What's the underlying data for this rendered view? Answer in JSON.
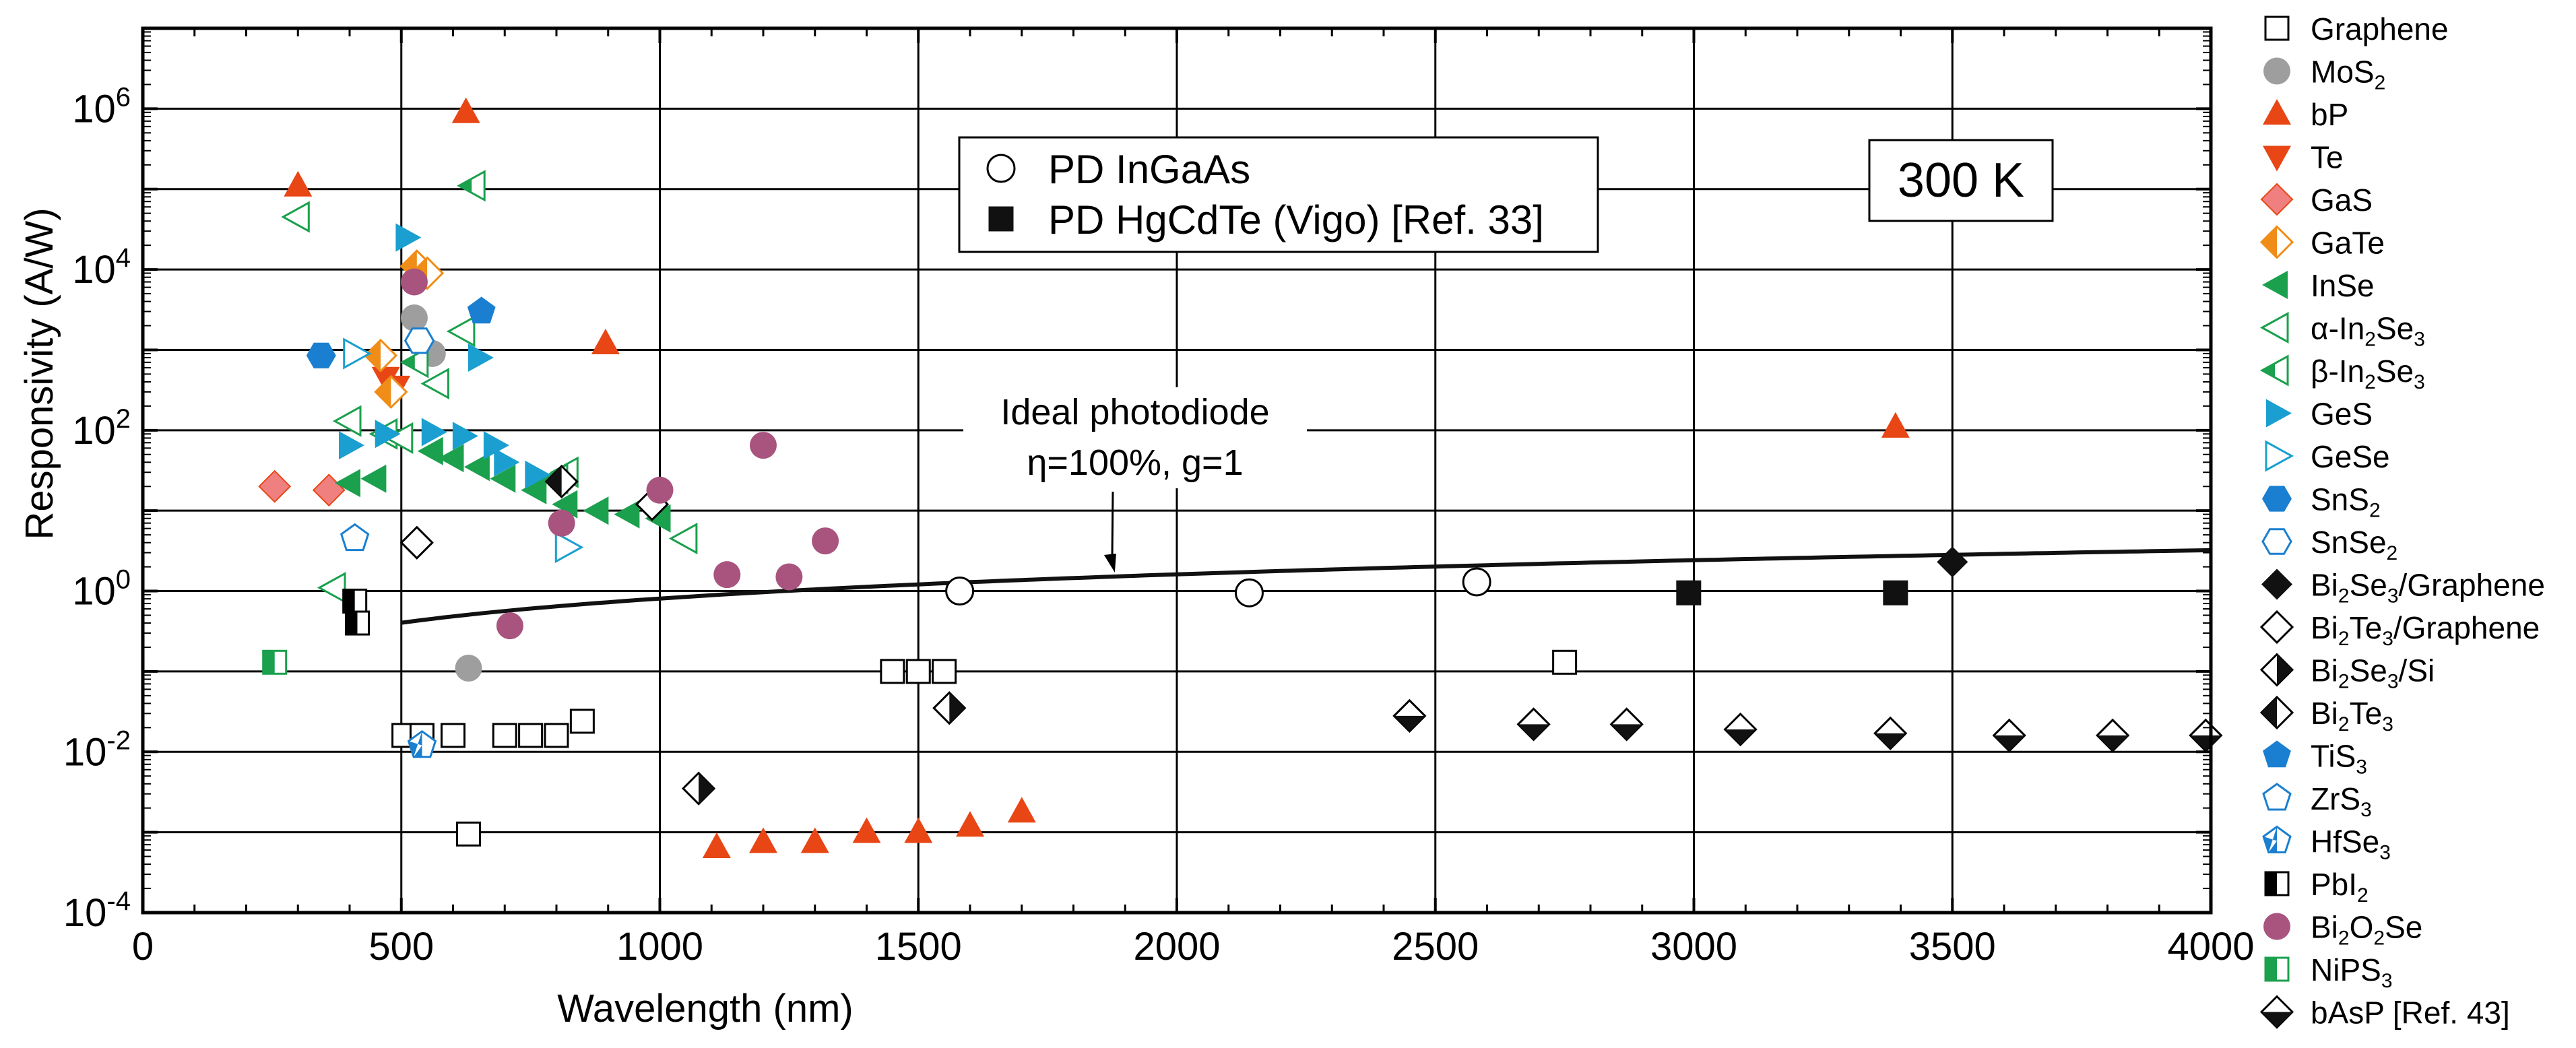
{
  "chart_data": {
    "type": "scatter",
    "xlabel": "Wavelength (nm)",
    "ylabel": "Responsivity (A/W)",
    "xlim": [
      0,
      4000
    ],
    "ylim_log10": [
      -4,
      7
    ],
    "x_ticks": [
      0,
      500,
      1000,
      1500,
      2000,
      2500,
      3000,
      3500,
      4000
    ],
    "x_tick_labels": [
      "0",
      "500",
      "1000",
      "1500",
      "2000",
      "2500",
      "3000",
      "3500",
      "4000"
    ],
    "y_ticks": [
      {
        "base": "10",
        "exp": "-4",
        "value": -4
      },
      {
        "base": "10",
        "exp": "-2",
        "value": -2
      },
      {
        "base": "10",
        "exp": "0",
        "value": 0
      },
      {
        "base": "10",
        "exp": "2",
        "value": 2
      },
      {
        "base": "10",
        "exp": "4",
        "value": 4
      },
      {
        "base": "10",
        "exp": "6",
        "value": 6
      }
    ],
    "grid": true,
    "temperature_label": "300 K",
    "ideal_curve": {
      "label_line1": "Ideal photodiode",
      "label_line2": "η=100%, g=1",
      "wavelength_range": [
        500,
        4000
      ],
      "formula": "R = lambda_um / 1.24",
      "arrow_points_at_x": 1880
    },
    "reference_legend": [
      {
        "label": "PD InGaAs",
        "marker": "circle_open"
      },
      {
        "label": "PD HgCdTe (Vigo) [Ref. 33]",
        "marker": "square_filled"
      }
    ],
    "reference_series": [
      {
        "name": "PD InGaAs",
        "marker": "circle_open",
        "points": [
          [
            1580,
            1.0
          ],
          [
            2140,
            0.95
          ],
          [
            2580,
            1.3
          ]
        ]
      },
      {
        "name": "PD HgCdTe (Vigo) [Ref. 33]",
        "marker": "square_filled",
        "points": [
          [
            2990,
            0.95
          ],
          [
            3390,
            0.95
          ]
        ]
      }
    ],
    "series": [
      {
        "name": "Graphene",
        "legend": [
          {
            "t": "Graphene"
          }
        ],
        "marker": "square_open",
        "color": "#000000",
        "points": [
          [
            505,
            0.016
          ],
          [
            540,
            0.016
          ],
          [
            600,
            0.016
          ],
          [
            630,
            0.00095
          ],
          [
            700,
            0.016
          ],
          [
            750,
            0.016
          ],
          [
            800,
            0.016
          ],
          [
            850,
            0.024
          ],
          [
            1450,
            0.1
          ],
          [
            1500,
            0.1
          ],
          [
            1550,
            0.1
          ],
          [
            2750,
            0.13
          ]
        ]
      },
      {
        "name": "MoS2",
        "legend": [
          {
            "t": "MoS"
          },
          {
            "t": "2",
            "sub": true
          }
        ],
        "marker": "circle_filled",
        "color": "#9e9e9e",
        "points": [
          [
            525,
            2500
          ],
          [
            560,
            900
          ],
          [
            630,
            0.11
          ]
        ]
      },
      {
        "name": "bP",
        "legend": [
          {
            "t": "bP"
          }
        ],
        "marker": "triangle_up",
        "color": "#e84615",
        "points": [
          [
            300,
            110000
          ],
          [
            625,
            900000
          ],
          [
            895,
            1200
          ],
          [
            1110,
            0.00065
          ],
          [
            1200,
            0.00075
          ],
          [
            1300,
            0.00075
          ],
          [
            1400,
            0.001
          ],
          [
            1500,
            0.001
          ],
          [
            1600,
            0.0012
          ],
          [
            1700,
            0.0018
          ],
          [
            3390,
            110
          ]
        ]
      },
      {
        "name": "Te",
        "legend": [
          {
            "t": "Te"
          }
        ],
        "marker": "triangle_down",
        "color": "#e84615",
        "points": [
          [
            470,
            450
          ],
          [
            490,
            350
          ]
        ]
      },
      {
        "name": "GaS",
        "legend": [
          {
            "t": "GaS"
          }
        ],
        "marker": "diamond_pink",
        "color": "#f08080",
        "points": [
          [
            255,
            20
          ],
          [
            360,
            18
          ]
        ]
      },
      {
        "name": "GaTe",
        "legend": [
          {
            "t": "GaTe"
          }
        ],
        "marker": "diamond_half_orange",
        "color": "#f08c18",
        "points": [
          [
            460,
            850
          ],
          [
            480,
            300
          ],
          [
            530,
            11000
          ],
          [
            550,
            9000
          ]
        ]
      },
      {
        "name": "InSe",
        "legend": [
          {
            "t": "InSe"
          }
        ],
        "marker": "triangle_left_filled",
        "color": "#1ba04d",
        "points": [
          [
            400,
            22
          ],
          [
            450,
            25
          ],
          [
            560,
            55
          ],
          [
            600,
            45
          ],
          [
            650,
            35
          ],
          [
            700,
            25
          ],
          [
            760,
            18
          ],
          [
            820,
            12
          ],
          [
            880,
            10
          ],
          [
            940,
            9
          ],
          [
            1000,
            8
          ]
        ]
      },
      {
        "name": "α-In2Se3",
        "legend": [
          {
            "t": "α-In"
          },
          {
            "t": "2",
            "sub": true
          },
          {
            "t": "Se"
          },
          {
            "t": "3",
            "sub": true
          }
        ],
        "marker": "triangle_left_open",
        "color": "#1ba04d",
        "points": [
          [
            300,
            45000
          ],
          [
            370,
            1.1
          ],
          [
            400,
            130
          ],
          [
            470,
            90
          ],
          [
            500,
            80
          ],
          [
            570,
            380
          ],
          [
            620,
            1700
          ],
          [
            820,
            30
          ],
          [
            1050,
            4.5
          ]
        ]
      },
      {
        "name": "β-In2Se3",
        "legend": [
          {
            "t": "β-In"
          },
          {
            "t": "2",
            "sub": true
          },
          {
            "t": "Se"
          },
          {
            "t": "3",
            "sub": true
          }
        ],
        "marker": "triangle_left_half",
        "color": "#1ba04d",
        "points": [
          [
            640,
            110000
          ],
          [
            530,
            700
          ],
          [
            800,
            25
          ]
        ]
      },
      {
        "name": "GeS",
        "legend": [
          {
            "t": "GeS"
          }
        ],
        "marker": "triangle_right_filled",
        "color": "#1a9fd0",
        "points": [
          [
            510,
            25000
          ],
          [
            650,
            800
          ],
          [
            400,
            65
          ],
          [
            470,
            90
          ],
          [
            560,
            95
          ],
          [
            620,
            85
          ],
          [
            680,
            65
          ],
          [
            700,
            40
          ],
          [
            760,
            28
          ]
        ]
      },
      {
        "name": "GeSe",
        "legend": [
          {
            "t": "GeSe"
          }
        ],
        "marker": "triangle_right_open",
        "color": "#1a9fd0",
        "points": [
          [
            410,
            900
          ],
          [
            820,
            3.5
          ]
        ]
      },
      {
        "name": "SnS2",
        "legend": [
          {
            "t": "SnS"
          },
          {
            "t": "2",
            "sub": true
          }
        ],
        "marker": "hexagon_filled",
        "color": "#1a7fd0",
        "points": [
          [
            345,
            850
          ]
        ]
      },
      {
        "name": "SnSe2",
        "legend": [
          {
            "t": "SnSe"
          },
          {
            "t": "2",
            "sub": true
          }
        ],
        "marker": "hexagon_open",
        "color": "#1a7fd0",
        "points": [
          [
            535,
            1300
          ]
        ]
      },
      {
        "name": "Bi2Se3/Graphene",
        "legend": [
          {
            "t": "Bi"
          },
          {
            "t": "2",
            "sub": true
          },
          {
            "t": "Se"
          },
          {
            "t": "3",
            "sub": true
          },
          {
            "t": "/Graphene"
          }
        ],
        "marker": "diamond_filled",
        "color": "#000000",
        "points": [
          [
            3500,
            2.3
          ]
        ]
      },
      {
        "name": "Bi2Te3/Graphene",
        "legend": [
          {
            "t": "Bi"
          },
          {
            "t": "2",
            "sub": true
          },
          {
            "t": "Te"
          },
          {
            "t": "3",
            "sub": true
          },
          {
            "t": "/Graphene"
          }
        ],
        "marker": "diamond_open",
        "color": "#000000",
        "points": [
          [
            530,
            4
          ],
          [
            985,
            12
          ]
        ]
      },
      {
        "name": "Bi2Se3/Si",
        "legend": [
          {
            "t": "Bi"
          },
          {
            "t": "2",
            "sub": true
          },
          {
            "t": "Se"
          },
          {
            "t": "3",
            "sub": true
          },
          {
            "t": "/Si"
          }
        ],
        "marker": "diamond_half_lr",
        "color": "#000000",
        "points": [
          [
            1075,
            0.0035
          ],
          [
            1560,
            0.035
          ]
        ]
      },
      {
        "name": "Bi2Te3",
        "legend": [
          {
            "t": "Bi"
          },
          {
            "t": "2",
            "sub": true
          },
          {
            "t": "Te"
          },
          {
            "t": "3",
            "sub": true
          }
        ],
        "marker": "diamond_half_rl",
        "color": "#000000",
        "points": [
          [
            810,
            23
          ]
        ]
      },
      {
        "name": "TiS3",
        "legend": [
          {
            "t": "TiS"
          },
          {
            "t": "3",
            "sub": true
          }
        ],
        "marker": "pentagon_filled",
        "color": "#1a7fd0",
        "points": [
          [
            655,
            3000
          ]
        ]
      },
      {
        "name": "ZrS3",
        "legend": [
          {
            "t": "ZrS"
          },
          {
            "t": "3",
            "sub": true
          }
        ],
        "marker": "pentagon_open",
        "color": "#1a7fd0",
        "points": [
          [
            410,
            4.5
          ]
        ]
      },
      {
        "name": "HfSe3",
        "legend": [
          {
            "t": "HfSe"
          },
          {
            "t": "3",
            "sub": true
          }
        ],
        "marker": "pentagon_half",
        "color": "#1a7fd0",
        "points": [
          [
            540,
            0.012
          ]
        ]
      },
      {
        "name": "PbI2",
        "legend": [
          {
            "t": "PbI"
          },
          {
            "t": "2",
            "sub": true
          }
        ],
        "marker": "square_half",
        "color": "#000000",
        "points": [
          [
            410,
            0.75
          ],
          [
            415,
            0.4
          ]
        ]
      },
      {
        "name": "Bi2O2Se",
        "legend": [
          {
            "t": "Bi"
          },
          {
            "t": "2",
            "sub": true
          },
          {
            "t": "O"
          },
          {
            "t": "2",
            "sub": true
          },
          {
            "t": "Se"
          }
        ],
        "marker": "circle_purple",
        "color": "#a8547e",
        "points": [
          [
            525,
            7000
          ],
          [
            710,
            0.37
          ],
          [
            810,
            7
          ],
          [
            1000,
            18
          ],
          [
            1130,
            1.6
          ],
          [
            1200,
            65
          ],
          [
            1250,
            1.5
          ],
          [
            1320,
            4.2
          ]
        ]
      },
      {
        "name": "NiPS3",
        "legend": [
          {
            "t": "NiPS"
          },
          {
            "t": "3",
            "sub": true
          }
        ],
        "marker": "square_half_green",
        "color": "#1ba04d",
        "points": [
          [
            255,
            0.13
          ]
        ]
      },
      {
        "name": "bAsP [Ref. 43]",
        "legend": [
          {
            "t": "bAsP [Ref. 43]"
          }
        ],
        "marker": "diamond_half_tb",
        "color": "#000000",
        "points": [
          [
            2450,
            0.028
          ],
          [
            2690,
            0.022
          ],
          [
            2870,
            0.022
          ],
          [
            3090,
            0.019
          ],
          [
            3380,
            0.017
          ],
          [
            3610,
            0.016
          ],
          [
            3810,
            0.016
          ],
          [
            3990,
            0.016
          ]
        ]
      }
    ]
  }
}
